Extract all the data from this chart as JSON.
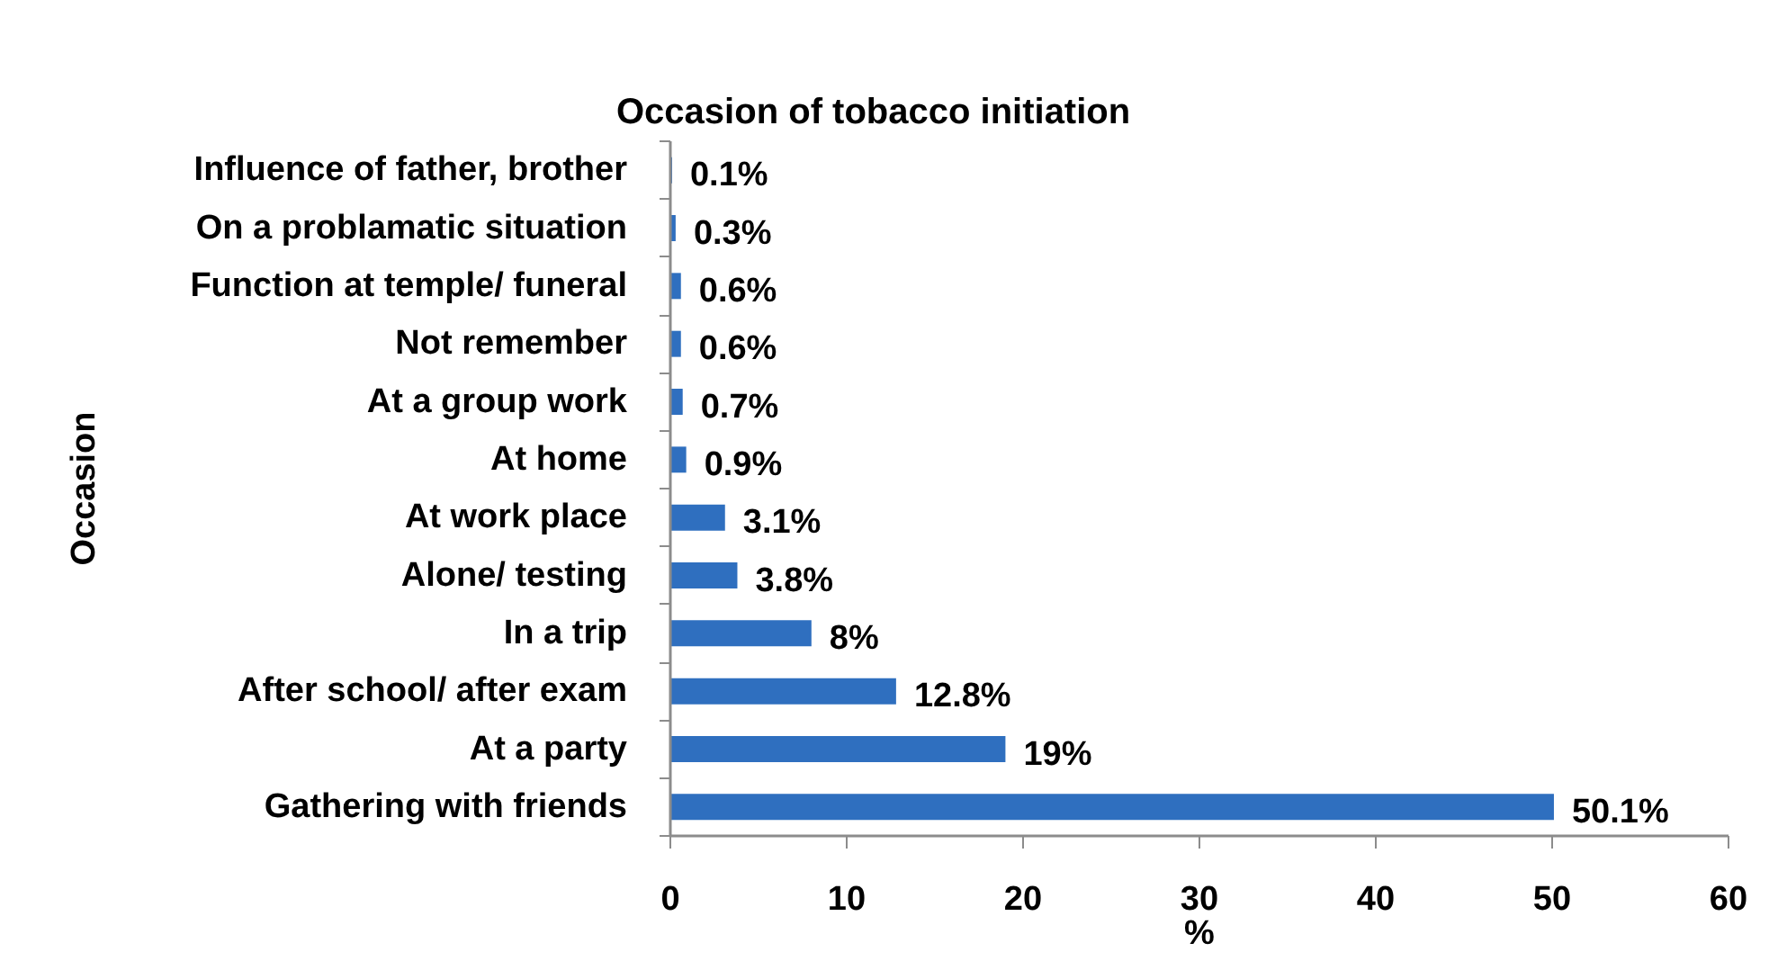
{
  "chart_data": {
    "type": "bar",
    "orientation": "horizontal",
    "title": "Occasion of tobacco initiation",
    "xlabel": "%",
    "ylabel": "Occasion",
    "categories": [
      "Influence of father, brother",
      "On a problamatic situation",
      "Function at temple/ funeral",
      "Not remember",
      "At a group work",
      "At home",
      "At work place",
      "Alone/ testing",
      "In a trip",
      "After school/ after exam",
      "At a party",
      "Gathering with friends"
    ],
    "values": [
      0.1,
      0.3,
      0.6,
      0.6,
      0.7,
      0.9,
      3.1,
      3.8,
      8,
      12.8,
      19,
      50.1
    ],
    "value_labels": [
      "0.1%",
      "0.3%",
      "0.6%",
      "0.6%",
      "0.7%",
      "0.9%",
      "3.1%",
      "3.8%",
      "8%",
      "12.8%",
      "19%",
      "50.1%"
    ],
    "color": "#2f6fbf",
    "xlim": [
      0,
      60
    ],
    "xticks": [
      0,
      10,
      20,
      30,
      40,
      50,
      60
    ]
  }
}
